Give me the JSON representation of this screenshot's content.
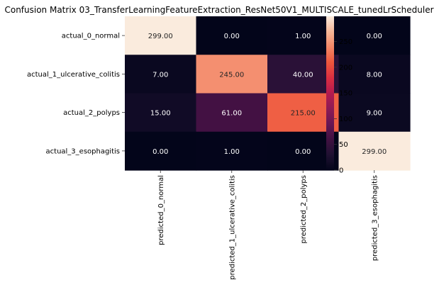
{
  "chart_data": {
    "type": "heatmap",
    "title": "Confusion Matrix 03_TransferLearningFeatureExtraction_ResNet50V1_MULTISCALE_tunedLrScheduler",
    "xlabel": "",
    "ylabel": "",
    "rows": [
      "actual_0_normal",
      "actual_1_ulcerative_colitis",
      "actual_2_polyps",
      "actual_3_esophagitis"
    ],
    "columns": [
      "predicted_0_normal",
      "predicted_1_ulcerative_colitis",
      "predicted_2_polyps",
      "predicted_3_esophagitis"
    ],
    "values": [
      [
        299,
        0,
        1,
        0
      ],
      [
        7,
        245,
        40,
        8
      ],
      [
        15,
        61,
        215,
        9
      ],
      [
        0,
        1,
        0,
        299
      ]
    ],
    "value_format": "0.00",
    "colormap": "rocket",
    "colorbar": {
      "range": [
        0,
        299
      ],
      "ticks": [
        0,
        50,
        100,
        150,
        200,
        250
      ]
    }
  }
}
